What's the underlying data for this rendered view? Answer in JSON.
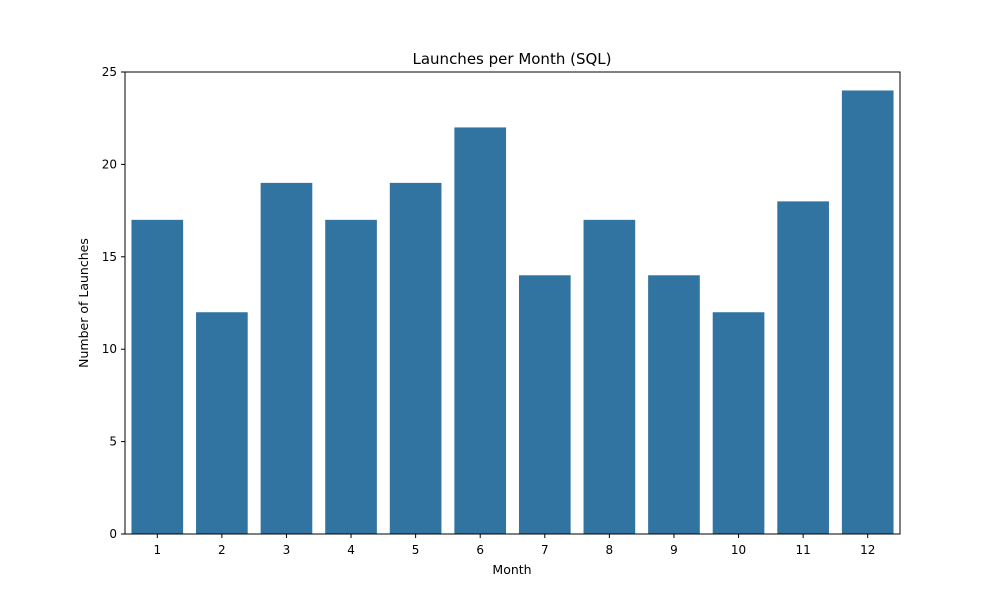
{
  "chart_data": {
    "type": "bar",
    "title": "Launches per Month (SQL)",
    "xlabel": "Month",
    "ylabel": "Number of Launches",
    "categories": [
      "1",
      "2",
      "3",
      "4",
      "5",
      "6",
      "7",
      "8",
      "9",
      "10",
      "11",
      "12"
    ],
    "values": [
      17,
      12,
      19,
      17,
      19,
      22,
      14,
      17,
      14,
      12,
      18,
      24
    ],
    "ylim": [
      0,
      25
    ],
    "yticks": [
      0,
      5,
      10,
      15,
      20,
      25
    ],
    "grid": false,
    "legend": "none",
    "bar_color": "#3274a1"
  }
}
